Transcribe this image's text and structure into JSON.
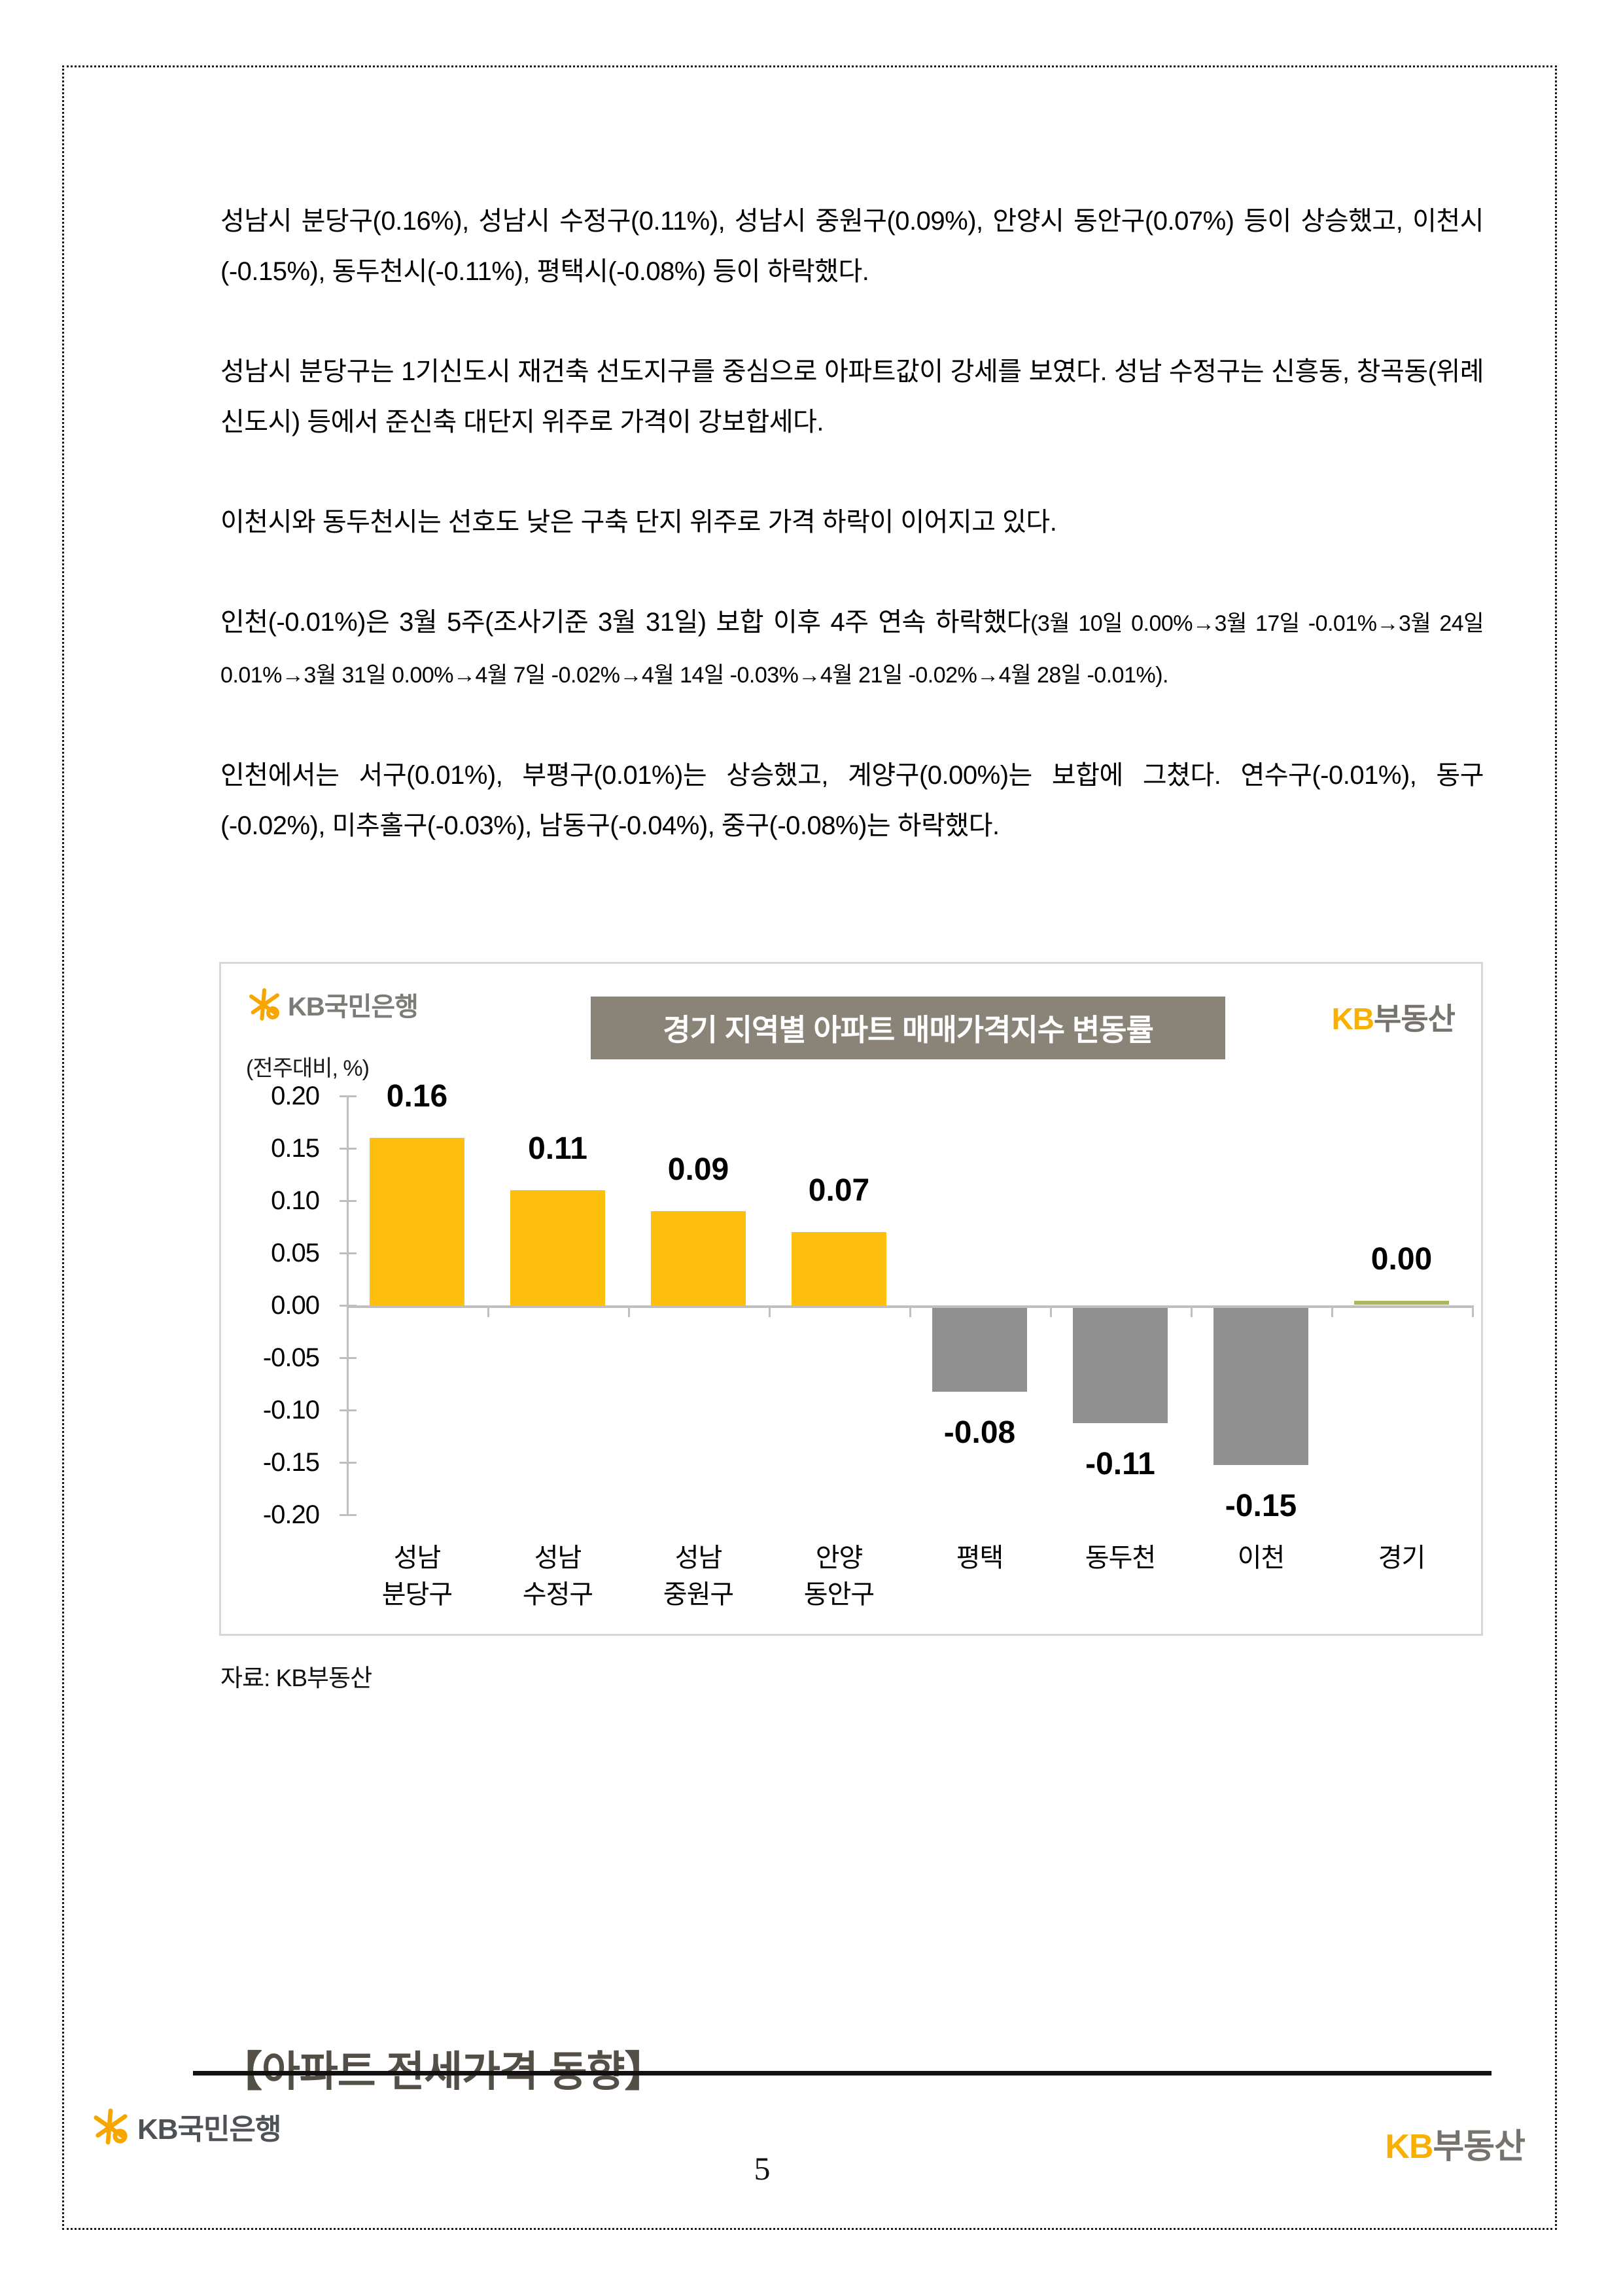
{
  "document": {
    "paragraphs": {
      "p1": "성남시 분당구(0.16%), 성남시 수정구(0.11%), 성남시 중원구(0.09%), 안양시 동안구(0.07%) 등이 상승했고, 이천시(-0.15%), 동두천시(-0.11%), 평택시(-0.08%) 등이 하락했다.",
      "p2": "성남시 분당구는 1기신도시 재건축 선도지구를 중심으로 아파트값이 강세를 보였다. 성남 수정구는 신흥동, 창곡동(위례신도시) 등에서 준신축 대단지 위주로 가격이 강보합세다.",
      "p3": "이천시와 동두천시는 선호도 낮은 구축 단지 위주로 가격 하락이 이어지고 있다.",
      "p4_main": "인천(-0.01%)은 3월 5주(조사기준 3월 31일) 보합 이후 4주 연속 하락했다",
      "p4_detail": "(3월 10일 0.00%→3월 17일 -0.01%→3월 24일 0.01%→3월 31일 0.00%→4월 7일 -0.02%→4월 14일 -0.03%→4월 21일 -0.02%→4월 28일 -0.01%).",
      "p5": "인천에서는 서구(0.01%), 부평구(0.01%)는 상승했고, 계양구(0.00%)는 보합에 그쳤다. 연수구(-0.01%), 동구(-0.02%), 미추홀구(-0.03%), 남동구(-0.04%), 중구(-0.08%)는 하락했다."
    },
    "section_heading": "【아파트 전세가격 동향】"
  },
  "chart": {
    "logo_left": "KB국민은행",
    "logo_right_kb": "KB",
    "logo_right_rest": "부동산"
  },
  "chart_data": {
    "type": "bar",
    "title": "경기 지역별 아파트 매매가격지수 변동률",
    "unit_label": "(전주대비, %)",
    "source": "자료: KB부동산",
    "categories": [
      "성남 분당구",
      "성남 수정구",
      "성남 중원구",
      "안양 동안구",
      "평택",
      "동두천",
      "이천",
      "경기"
    ],
    "values": [
      0.16,
      0.11,
      0.09,
      0.07,
      -0.08,
      -0.11,
      -0.15,
      0.0
    ],
    "value_labels": [
      "0.16",
      "0.11",
      "0.09",
      "0.07",
      "-0.08",
      "-0.11",
      "-0.15",
      "0.00"
    ],
    "bar_colors": [
      "#FFC00D",
      "#FFC00D",
      "#FFC00D",
      "#FFC00D",
      "#8F8F8F",
      "#8F8F8F",
      "#8F8F8F",
      "#ADB65A"
    ],
    "y_ticks": [
      "0.20",
      "0.15",
      "0.10",
      "0.05",
      "0.00",
      "-0.05",
      "-0.10",
      "-0.15",
      "-0.20"
    ],
    "ylim": [
      -0.2,
      0.2
    ],
    "grid": false,
    "legend": false
  },
  "footer": {
    "left_brand": "KB국민은행",
    "page_number": "5",
    "right_kb": "KB",
    "right_rest": "부동산"
  },
  "colors": {
    "bar_positive": "#FFC00D",
    "bar_negative": "#8F8F8F",
    "bar_zero": "#ADB65A",
    "title_bg": "#8A8478",
    "axis_gray": "#BFBFBF",
    "kb_yellow": "#F9B000",
    "logo_gray": "#76726D",
    "heading_color": "#534E46"
  }
}
